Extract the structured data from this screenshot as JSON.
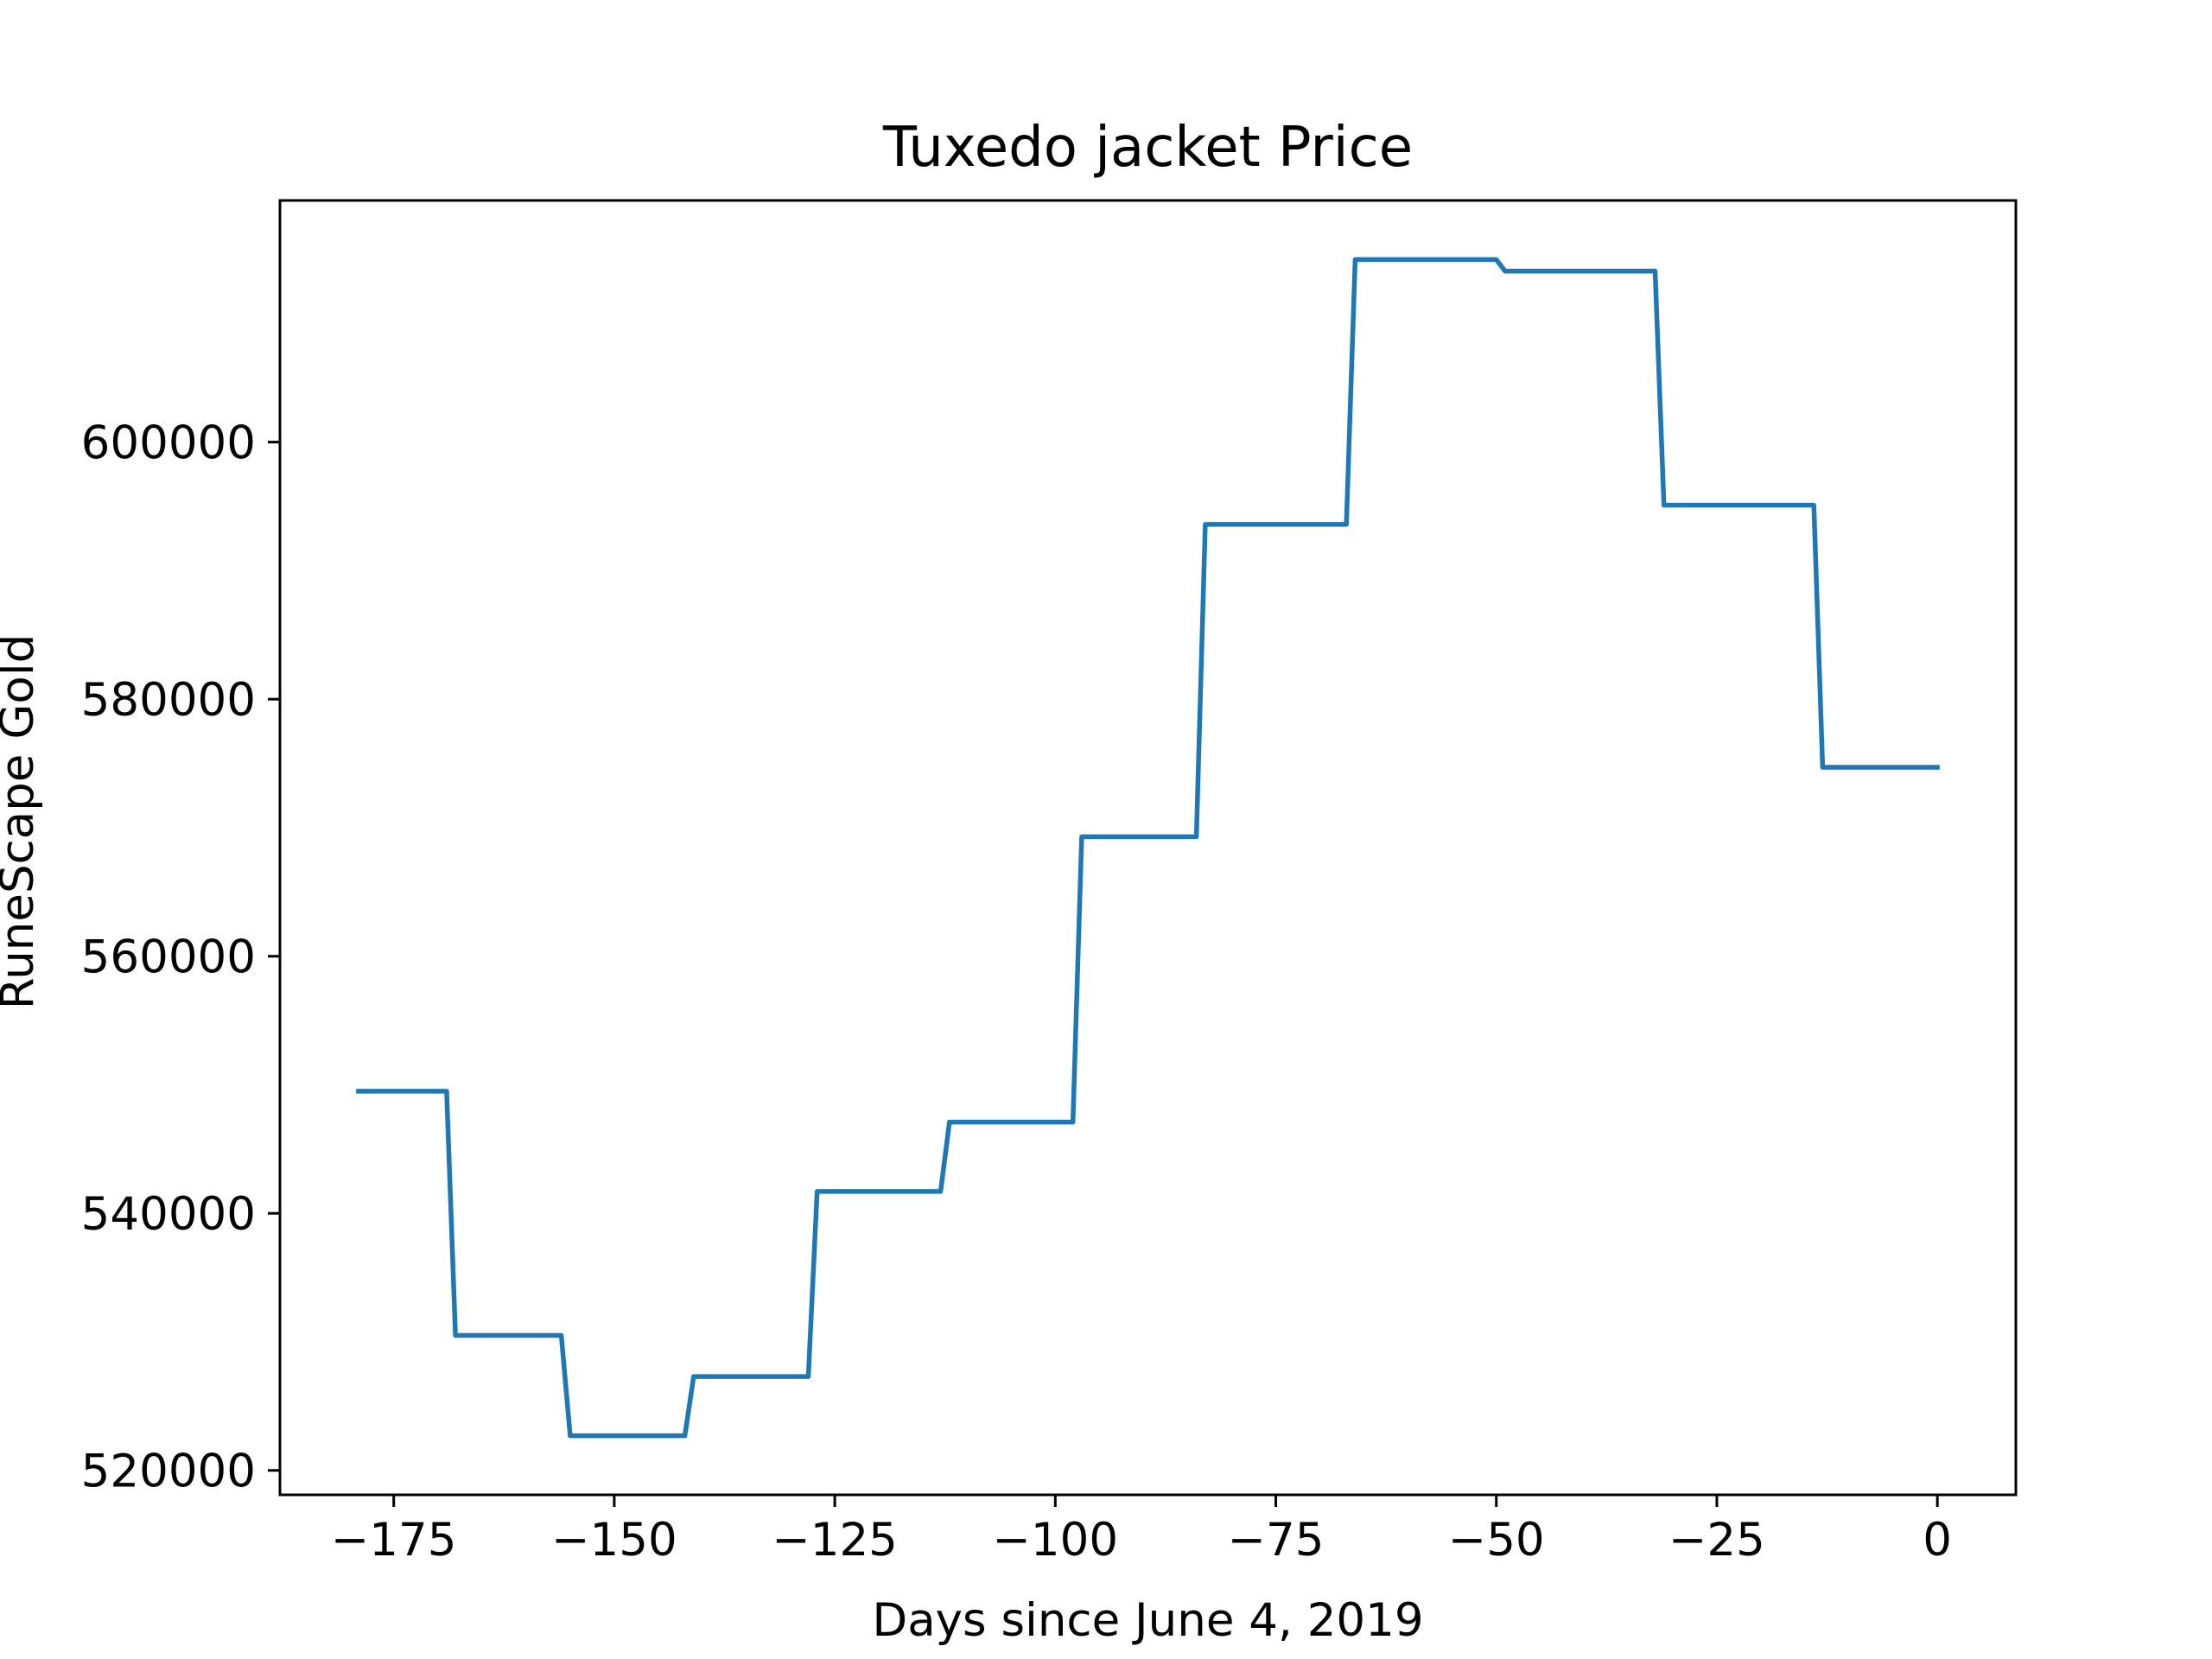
{
  "colors": {
    "background": "#ffffff",
    "axes": "#000000",
    "series": "#1f77b4"
  },
  "chart_data": {
    "type": "line",
    "title": "Tuxedo jacket Price",
    "xlabel": "Days since June 4, 2019",
    "ylabel": "RuneScape Gold",
    "xlim": [
      -187.9,
      8.9
    ],
    "ylim": [
      518100,
      618800
    ],
    "grid": false,
    "legend": "none",
    "x_ticks": [
      -175,
      -150,
      -125,
      -100,
      -75,
      -50,
      -25,
      0
    ],
    "x_tick_labels": [
      "−175",
      "−150",
      "−125",
      "−100",
      "−75",
      "−50",
      "−25",
      "0"
    ],
    "y_ticks": [
      520000,
      540000,
      560000,
      580000,
      600000
    ],
    "y_tick_labels": [
      "520000",
      "540000",
      "560000",
      "580000",
      "600000"
    ],
    "series": [
      {
        "x": [
          -179,
          -169,
          -168,
          -156,
          -155,
          -142,
          -141,
          -128,
          -127,
          -113,
          -112,
          -98,
          -97,
          -84,
          -83,
          -67,
          -66,
          -50,
          -49,
          -32,
          -31,
          -14,
          -13,
          0
        ],
        "y": [
          549500,
          549500,
          530500,
          530500,
          522700,
          522700,
          527300,
          527300,
          541700,
          541700,
          547100,
          547100,
          569300,
          569300,
          593600,
          593600,
          614200,
          614200,
          613300,
          613300,
          595100,
          595100,
          574700,
          574700
        ]
      }
    ]
  }
}
